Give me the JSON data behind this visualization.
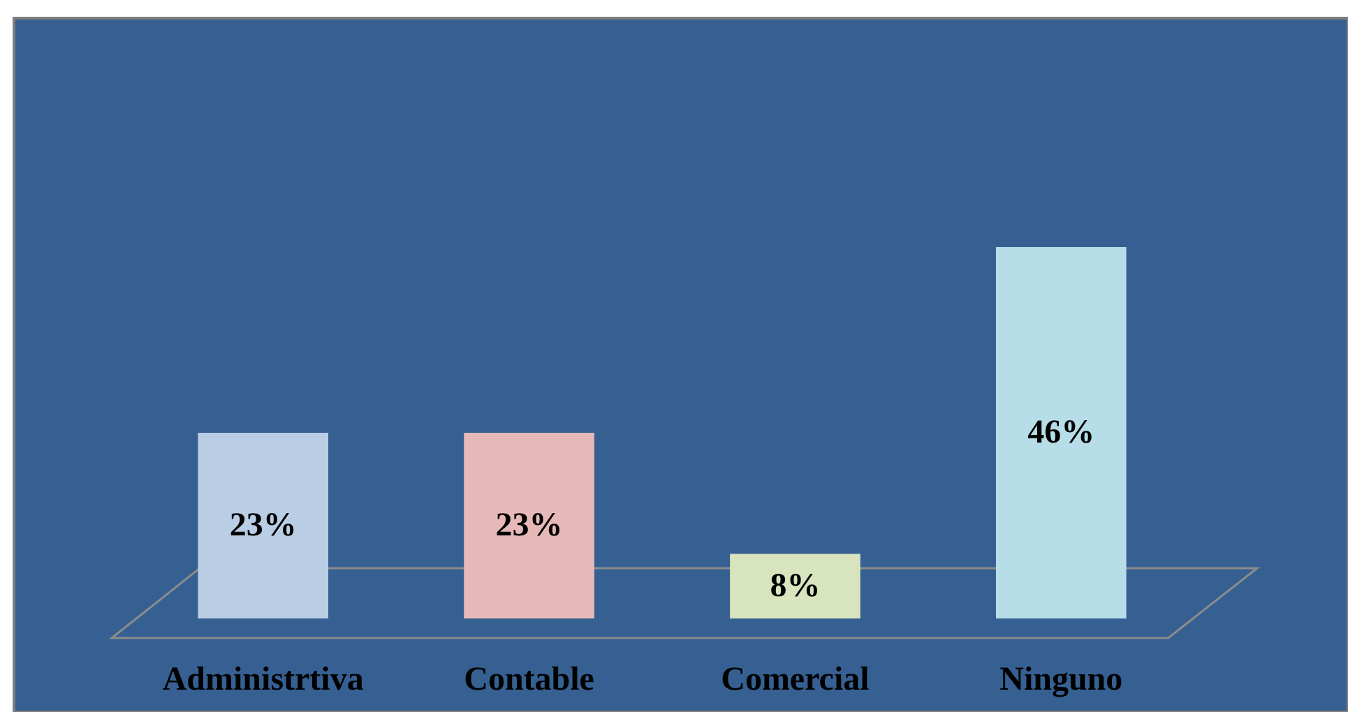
{
  "chart_data": {
    "type": "bar",
    "categories": [
      "Administrtiva",
      "Contable",
      "Comercial",
      "Ninguno"
    ],
    "values": [
      23,
      23,
      8,
      46
    ],
    "colors": [
      "#b9cde5",
      "#e6b9b8",
      "#d7e4bd",
      "#b7dee8"
    ],
    "value_labels": [
      "23%",
      "23%",
      "8%",
      "46%"
    ]
  }
}
